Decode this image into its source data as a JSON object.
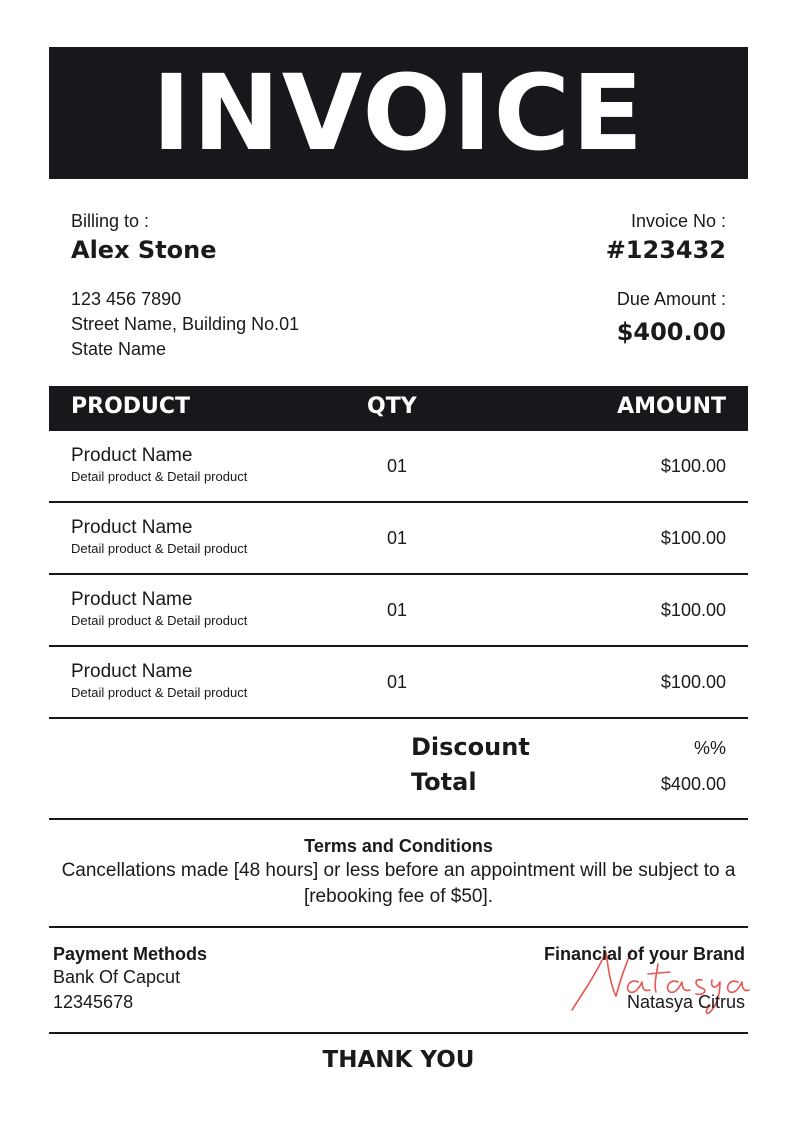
{
  "title": "INVOICE",
  "billing": {
    "label": "Billing to :",
    "name": "Alex Stone",
    "phone": "123 456 7890",
    "street": "Street Name, Building No.01",
    "state": "State Name"
  },
  "invoice": {
    "no_label": "Invoice No :",
    "no": "#123432",
    "due_label": "Due Amount :",
    "due": "$400.00"
  },
  "table": {
    "headers": [
      "PRODUCT",
      "QTY",
      "AMOUNT"
    ],
    "rows": [
      {
        "name": "Product Name",
        "detail": "Detail product & Detail product",
        "qty": "01",
        "amount": "$100.00"
      },
      {
        "name": "Product Name",
        "detail": "Detail product & Detail product",
        "qty": "01",
        "amount": "$100.00"
      },
      {
        "name": "Product Name",
        "detail": "Detail product & Detail product",
        "qty": "01",
        "amount": "$100.00"
      },
      {
        "name": "Product Name",
        "detail": "Detail product & Detail product",
        "qty": "01",
        "amount": "$100.00"
      }
    ]
  },
  "summary": {
    "discount_label": "Discount",
    "discount": "%%",
    "total_label": "Total",
    "total": "$400.00"
  },
  "terms": {
    "title": "Terms and Conditions",
    "text": "Cancellations made [48 hours] or less before an appointment will be subject to a [rebooking fee of $50]."
  },
  "payment": {
    "title": "Payment Methods",
    "bank": "Bank Of Capcut",
    "account": "12345678"
  },
  "signature": {
    "title": "Financial of your Brand",
    "script": "Natasya",
    "name": "Natasya Citrus",
    "color": "#e5443f"
  },
  "footer": "THANK YOU"
}
